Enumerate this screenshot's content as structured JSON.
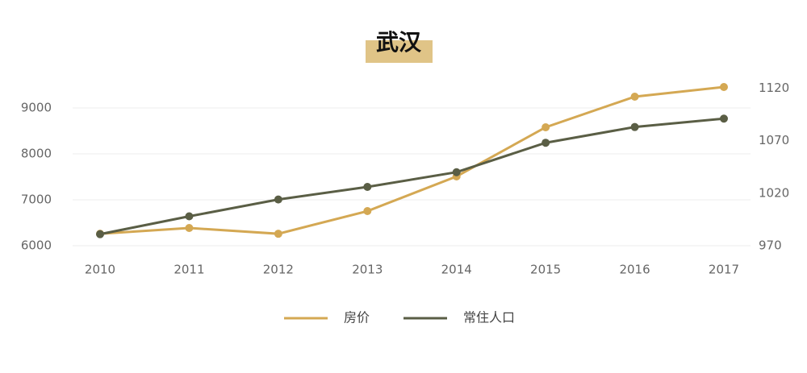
{
  "chart_data": {
    "type": "line",
    "title": "武汉",
    "categories": [
      "2010",
      "2011",
      "2012",
      "2013",
      "2014",
      "2015",
      "2016",
      "2017"
    ],
    "series": [
      {
        "name": "房价",
        "color": "#d4a853",
        "values": [
          6260,
          6386,
          6260,
          6754,
          7509,
          8579,
          9246,
          9456
        ]
      },
      {
        "name": "常住人口",
        "color": "#5a5e45",
        "axis": "y2",
        "values": [
          981,
          998,
          1014,
          1026,
          1040,
          1068,
          1083,
          1091
        ]
      }
    ],
    "ylim": [
      6000,
      9500
    ],
    "yticks": [
      6000,
      7000,
      8000,
      9000
    ],
    "y2lim": [
      970,
      1123
    ],
    "y2ticks": [
      970,
      1020,
      1070,
      1120
    ],
    "grid": true,
    "legend": "bottom"
  }
}
